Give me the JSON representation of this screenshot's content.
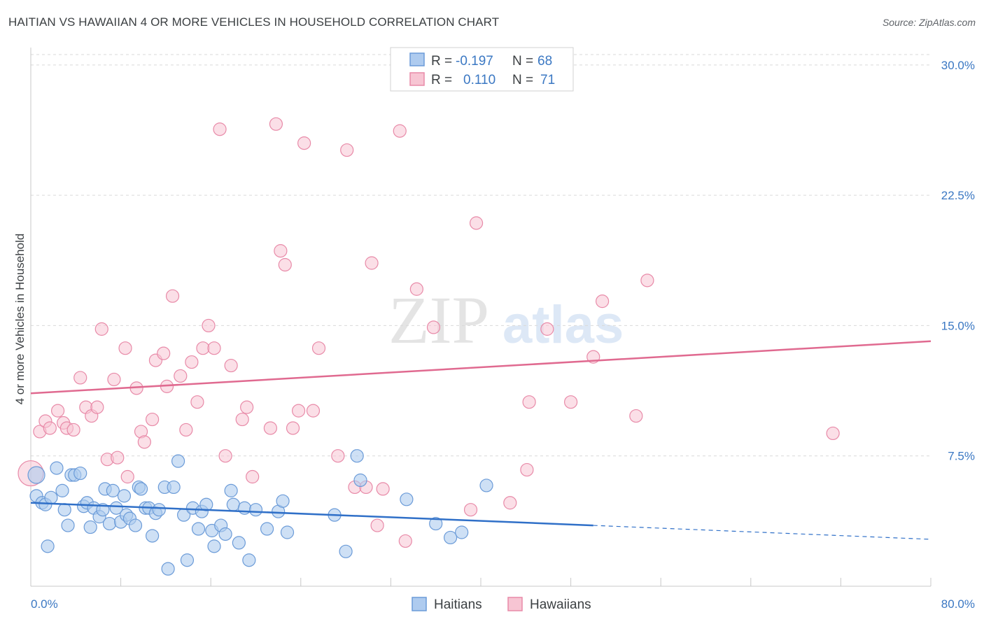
{
  "title": "HAITIAN VS HAWAIIAN 4 OR MORE VEHICLES IN HOUSEHOLD CORRELATION CHART",
  "source": "Source: ZipAtlas.com",
  "watermark": {
    "zip": "ZIP",
    "atlas": "atlas"
  },
  "legend": {
    "haitians": {
      "r_label": "R =",
      "r_value": "-0.197",
      "n_label": "N =",
      "n_value": "68"
    },
    "hawaiians": {
      "r_label": "R =",
      "r_value": "0.110",
      "n_label": "N =",
      "n_value": "71"
    }
  },
  "colors": {
    "haitians_fill": "#aecbef",
    "haitians_stroke": "#6b9bd8",
    "haitians_line": "#3070c8",
    "hawaiians_fill": "#f7c5d3",
    "hawaiians_stroke": "#e88aa8",
    "hawaiians_line": "#e06a90",
    "tick": "#3b78c3",
    "grid": "#d9d9d9"
  },
  "chart_data": {
    "type": "scatter",
    "title": "HAITIAN VS HAWAIIAN 4 OR MORE VEHICLES IN HOUSEHOLD CORRELATION CHART",
    "xlabel": "",
    "ylabel": "4 or more Vehicles in Household",
    "xlim": [
      0,
      80
    ],
    "ylim": [
      0,
      31
    ],
    "x_tick_labels": [
      "0.0%",
      "80.0%"
    ],
    "y_ticks": [
      7.5,
      15.0,
      22.5,
      30.0
    ],
    "y_tick_labels": [
      "7.5%",
      "15.0%",
      "22.5%",
      "30.0%"
    ],
    "grid": true,
    "legend_position": "bottom",
    "series": [
      {
        "name": "Haitians",
        "r": -0.197,
        "n": 68,
        "trend": {
          "x0": 0,
          "y0": 4.8,
          "x1": 50,
          "y1": 3.5,
          "dashed_to_x": 80,
          "dashed_to_y": 2.7
        },
        "points": [
          [
            0.5,
            6.4
          ],
          [
            0.5,
            5.2
          ],
          [
            1.0,
            4.8
          ],
          [
            1.3,
            4.7
          ],
          [
            1.5,
            2.3
          ],
          [
            1.8,
            5.1
          ],
          [
            2.3,
            6.8
          ],
          [
            2.8,
            5.5
          ],
          [
            3.0,
            4.4
          ],
          [
            3.3,
            3.5
          ],
          [
            3.6,
            6.4
          ],
          [
            3.9,
            6.4
          ],
          [
            4.4,
            6.5
          ],
          [
            4.7,
            4.6
          ],
          [
            5.0,
            4.8
          ],
          [
            5.3,
            3.4
          ],
          [
            5.6,
            4.5
          ],
          [
            6.1,
            4.0
          ],
          [
            6.4,
            4.4
          ],
          [
            6.6,
            5.6
          ],
          [
            7.0,
            3.6
          ],
          [
            7.3,
            5.5
          ],
          [
            7.6,
            4.5
          ],
          [
            8.0,
            3.7
          ],
          [
            8.3,
            5.2
          ],
          [
            8.5,
            4.1
          ],
          [
            8.8,
            3.9
          ],
          [
            9.3,
            3.5
          ],
          [
            9.6,
            5.7
          ],
          [
            9.8,
            5.6
          ],
          [
            10.2,
            4.5
          ],
          [
            10.5,
            4.5
          ],
          [
            10.8,
            2.9
          ],
          [
            11.1,
            4.2
          ],
          [
            11.4,
            4.4
          ],
          [
            11.9,
            5.7
          ],
          [
            12.2,
            1.0
          ],
          [
            12.7,
            5.7
          ],
          [
            13.1,
            7.2
          ],
          [
            13.6,
            4.1
          ],
          [
            13.9,
            1.5
          ],
          [
            14.4,
            4.5
          ],
          [
            14.9,
            3.3
          ],
          [
            15.2,
            4.3
          ],
          [
            15.6,
            4.7
          ],
          [
            16.1,
            3.2
          ],
          [
            16.3,
            2.3
          ],
          [
            16.9,
            3.5
          ],
          [
            17.3,
            3.0
          ],
          [
            17.8,
            5.5
          ],
          [
            18.0,
            4.7
          ],
          [
            18.5,
            2.5
          ],
          [
            19.0,
            4.5
          ],
          [
            19.4,
            1.5
          ],
          [
            20.0,
            4.4
          ],
          [
            21.0,
            3.3
          ],
          [
            22.0,
            4.3
          ],
          [
            22.4,
            4.9
          ],
          [
            22.8,
            3.1
          ],
          [
            27.0,
            4.1
          ],
          [
            28.0,
            2.0
          ],
          [
            29.0,
            7.5
          ],
          [
            29.3,
            6.1
          ],
          [
            33.4,
            5.0
          ],
          [
            36.0,
            3.6
          ],
          [
            37.3,
            2.8
          ],
          [
            38.3,
            3.1
          ],
          [
            40.5,
            5.8
          ]
        ]
      },
      {
        "name": "Hawaiians",
        "r": 0.11,
        "n": 71,
        "trend": {
          "x0": 0,
          "y0": 11.1,
          "x1": 80,
          "y1": 14.1
        },
        "points": [
          [
            0.0,
            6.5
          ],
          [
            0.8,
            8.9
          ],
          [
            1.3,
            9.5
          ],
          [
            1.7,
            9.1
          ],
          [
            2.4,
            10.1
          ],
          [
            2.9,
            9.4
          ],
          [
            3.2,
            9.1
          ],
          [
            3.8,
            9.0
          ],
          [
            4.4,
            12.0
          ],
          [
            4.9,
            10.3
          ],
          [
            5.4,
            9.8
          ],
          [
            5.9,
            10.3
          ],
          [
            6.3,
            14.8
          ],
          [
            6.8,
            7.3
          ],
          [
            7.4,
            11.9
          ],
          [
            7.7,
            7.4
          ],
          [
            8.4,
            13.7
          ],
          [
            8.6,
            6.3
          ],
          [
            9.4,
            11.4
          ],
          [
            9.8,
            8.9
          ],
          [
            10.1,
            8.3
          ],
          [
            10.8,
            9.6
          ],
          [
            11.1,
            13.0
          ],
          [
            11.8,
            13.4
          ],
          [
            12.1,
            11.5
          ],
          [
            12.6,
            16.7
          ],
          [
            13.3,
            12.1
          ],
          [
            13.8,
            9.0
          ],
          [
            14.3,
            12.9
          ],
          [
            14.8,
            10.6
          ],
          [
            15.3,
            13.7
          ],
          [
            15.8,
            15.0
          ],
          [
            16.3,
            13.7
          ],
          [
            16.8,
            26.3
          ],
          [
            17.3,
            7.5
          ],
          [
            17.8,
            12.7
          ],
          [
            18.8,
            9.6
          ],
          [
            19.2,
            10.3
          ],
          [
            19.7,
            6.3
          ],
          [
            21.3,
            9.1
          ],
          [
            21.8,
            26.6
          ],
          [
            22.2,
            19.3
          ],
          [
            22.6,
            18.5
          ],
          [
            23.3,
            9.1
          ],
          [
            23.8,
            10.1
          ],
          [
            24.3,
            25.5
          ],
          [
            25.1,
            10.1
          ],
          [
            25.6,
            13.7
          ],
          [
            27.3,
            7.5
          ],
          [
            28.1,
            25.1
          ],
          [
            28.8,
            5.7
          ],
          [
            29.8,
            5.7
          ],
          [
            30.3,
            18.6
          ],
          [
            30.8,
            3.5
          ],
          [
            31.3,
            5.6
          ],
          [
            32.8,
            26.2
          ],
          [
            33.3,
            2.6
          ],
          [
            34.3,
            17.1
          ],
          [
            35.8,
            14.9
          ],
          [
            39.1,
            4.4
          ],
          [
            39.6,
            20.9
          ],
          [
            42.6,
            4.8
          ],
          [
            44.1,
            6.7
          ],
          [
            44.3,
            10.6
          ],
          [
            45.9,
            14.8
          ],
          [
            48.0,
            10.6
          ],
          [
            50.0,
            13.2
          ],
          [
            50.8,
            16.4
          ],
          [
            53.8,
            9.8
          ],
          [
            54.8,
            17.6
          ],
          [
            71.3,
            8.8
          ]
        ]
      }
    ]
  },
  "bottom_legend": {
    "haitians": "Haitians",
    "hawaiians": "Hawaiians"
  }
}
